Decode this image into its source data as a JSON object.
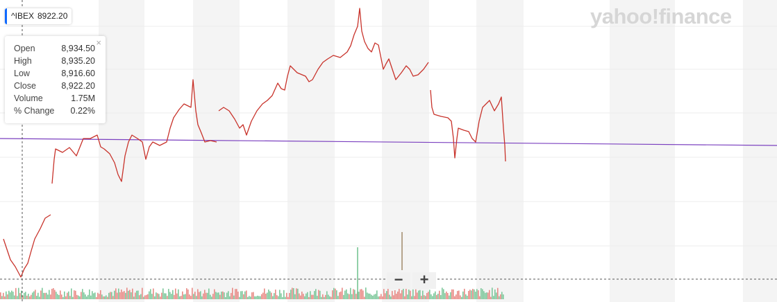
{
  "ticker": {
    "symbol": "^IBEX",
    "price": "8922.20"
  },
  "tooltip": {
    "rows": [
      [
        "Open",
        "8,934.50"
      ],
      [
        "High",
        "8,935.20"
      ],
      [
        "Low",
        "8,916.60"
      ],
      [
        "Close",
        "8,922.20"
      ],
      [
        "Volume",
        "1.75M"
      ],
      [
        "% Change",
        "0.22%"
      ]
    ]
  },
  "logo": "yahoo!finance",
  "zoom": {
    "out": "−",
    "in": "+"
  }
}
